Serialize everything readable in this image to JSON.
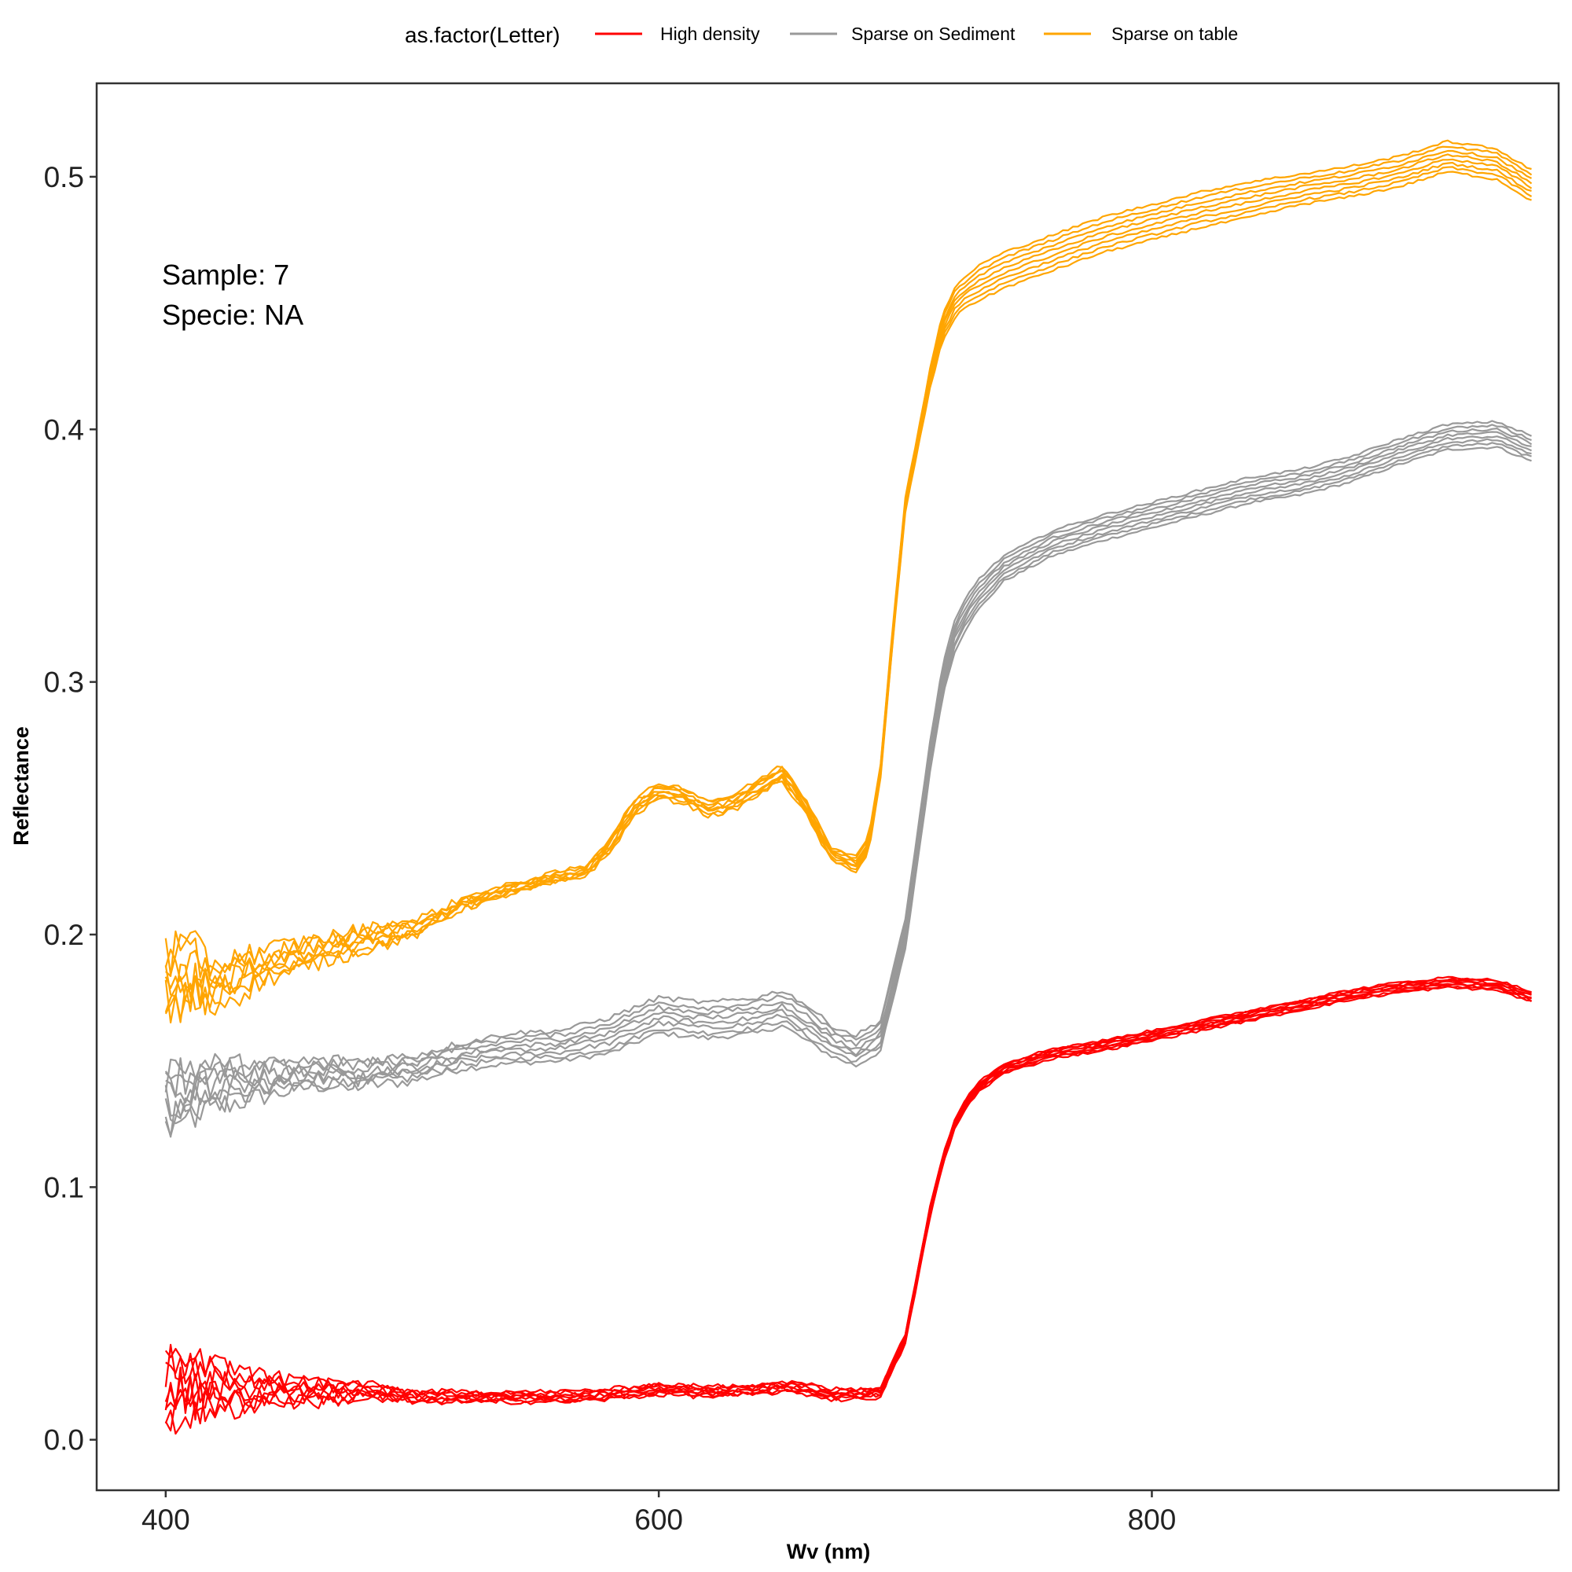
{
  "chart_data": {
    "type": "line",
    "xlabel": "Wv (nm)",
    "ylabel": "Reflectance",
    "xlim": [
      372,
      965
    ],
    "ylim": [
      -0.02,
      0.537
    ],
    "x_ticks": [
      400,
      600,
      800
    ],
    "x_tick_labels": [
      "400",
      "600",
      "800"
    ],
    "y_ticks": [
      0.0,
      0.1,
      0.2,
      0.3,
      0.4,
      0.5
    ],
    "y_tick_labels": [
      "0.0",
      "0.1",
      "0.2",
      "0.3",
      "0.4",
      "0.5"
    ],
    "grid": false,
    "legend": {
      "title": "as.factor(Letter)",
      "position": "top"
    },
    "annotation": {
      "lines": [
        "Sample: 7",
        "Specie: NA"
      ],
      "position": "top-left"
    },
    "series": [
      {
        "name": "High density",
        "color": "#ff0000",
        "replicates": 8,
        "x": [
          400,
          410,
          420,
          440,
          460,
          480,
          500,
          520,
          540,
          560,
          580,
          600,
          620,
          640,
          650,
          660,
          670,
          680,
          690,
          700,
          705,
          710,
          715,
          720,
          725,
          730,
          740,
          760,
          780,
          800,
          820,
          840,
          860,
          880,
          900,
          920,
          940,
          955
        ],
        "values": [
          0.02,
          0.022,
          0.02,
          0.02,
          0.019,
          0.019,
          0.017,
          0.017,
          0.017,
          0.017,
          0.018,
          0.02,
          0.019,
          0.02,
          0.021,
          0.02,
          0.018,
          0.018,
          0.019,
          0.04,
          0.065,
          0.09,
          0.11,
          0.125,
          0.134,
          0.14,
          0.147,
          0.153,
          0.156,
          0.16,
          0.164,
          0.168,
          0.172,
          0.176,
          0.179,
          0.181,
          0.18,
          0.175
        ],
        "spread": [
          0.012,
          0.01,
          0.008,
          0.005,
          0.004,
          0.003,
          0.002,
          0.002,
          0.002,
          0.002,
          0.002,
          0.002,
          0.002,
          0.002,
          0.002,
          0.002,
          0.002,
          0.002,
          0.002,
          0.002,
          0.002,
          0.002,
          0.002,
          0.002,
          0.002,
          0.002,
          0.002,
          0.002,
          0.002,
          0.002,
          0.002,
          0.002,
          0.002,
          0.002,
          0.002,
          0.002,
          0.002,
          0.002
        ],
        "noise": [
          0.012,
          0.01,
          0.007,
          0.004,
          0.003,
          0.002,
          0.0015,
          0.001,
          0.001,
          0.001,
          0.001,
          0.001,
          0.001,
          0.001,
          0.001,
          0.001,
          0.001,
          0.001,
          0.001,
          0.0005,
          0.0005,
          0.0005,
          0.0005,
          0.0005,
          0.0005,
          0.0005,
          0.0005,
          0.0005,
          0.0005,
          0.0005,
          0.0005,
          0.0005,
          0.0005,
          0.0005,
          0.0005,
          0.0005,
          0.0005,
          0.0005
        ]
      },
      {
        "name": "Sparse on Sediment",
        "color": "#999999",
        "replicates": 8,
        "x": [
          400,
          410,
          420,
          440,
          460,
          480,
          500,
          520,
          540,
          560,
          580,
          600,
          620,
          640,
          650,
          660,
          670,
          680,
          690,
          700,
          705,
          710,
          715,
          720,
          725,
          730,
          740,
          760,
          780,
          800,
          820,
          840,
          860,
          880,
          900,
          920,
          940,
          955
        ],
        "values": [
          0.135,
          0.138,
          0.14,
          0.142,
          0.145,
          0.145,
          0.147,
          0.152,
          0.155,
          0.156,
          0.16,
          0.168,
          0.166,
          0.168,
          0.171,
          0.165,
          0.158,
          0.154,
          0.16,
          0.2,
          0.235,
          0.27,
          0.3,
          0.318,
          0.328,
          0.335,
          0.345,
          0.355,
          0.361,
          0.366,
          0.371,
          0.376,
          0.379,
          0.384,
          0.391,
          0.397,
          0.398,
          0.392
        ],
        "spread": [
          0.012,
          0.01,
          0.008,
          0.006,
          0.005,
          0.005,
          0.005,
          0.005,
          0.006,
          0.006,
          0.007,
          0.007,
          0.007,
          0.007,
          0.007,
          0.007,
          0.006,
          0.006,
          0.006,
          0.006,
          0.006,
          0.006,
          0.006,
          0.006,
          0.006,
          0.006,
          0.005,
          0.005,
          0.005,
          0.005,
          0.005,
          0.005,
          0.005,
          0.005,
          0.005,
          0.005,
          0.005,
          0.005
        ],
        "noise": [
          0.01,
          0.008,
          0.006,
          0.004,
          0.003,
          0.003,
          0.002,
          0.0015,
          0.001,
          0.001,
          0.001,
          0.001,
          0.001,
          0.001,
          0.001,
          0.001,
          0.001,
          0.001,
          0.001,
          0.0005,
          0.0005,
          0.0005,
          0.0005,
          0.0005,
          0.0005,
          0.0005,
          0.0005,
          0.0005,
          0.0005,
          0.0005,
          0.0005,
          0.0005,
          0.0005,
          0.0005,
          0.0005,
          0.0005,
          0.0005,
          0.0005
        ]
      },
      {
        "name": "Sparse on table",
        "color": "#ffa500",
        "replicates": 8,
        "x": [
          400,
          410,
          420,
          440,
          460,
          480,
          500,
          520,
          540,
          560,
          570,
          580,
          590,
          600,
          610,
          620,
          630,
          640,
          650,
          660,
          670,
          680,
          685,
          690,
          695,
          700,
          705,
          710,
          715,
          720,
          725,
          730,
          740,
          760,
          780,
          800,
          820,
          840,
          860,
          880,
          900,
          920,
          940,
          955
        ],
        "values": [
          0.18,
          0.183,
          0.18,
          0.188,
          0.193,
          0.198,
          0.202,
          0.212,
          0.218,
          0.223,
          0.225,
          0.235,
          0.25,
          0.257,
          0.255,
          0.25,
          0.252,
          0.258,
          0.264,
          0.25,
          0.232,
          0.228,
          0.235,
          0.265,
          0.32,
          0.37,
          0.395,
          0.42,
          0.44,
          0.45,
          0.455,
          0.458,
          0.463,
          0.47,
          0.477,
          0.482,
          0.487,
          0.491,
          0.495,
          0.498,
          0.502,
          0.508,
          0.505,
          0.496
        ],
        "spread": [
          0.012,
          0.01,
          0.008,
          0.006,
          0.005,
          0.004,
          0.003,
          0.002,
          0.002,
          0.002,
          0.002,
          0.003,
          0.003,
          0.003,
          0.003,
          0.003,
          0.003,
          0.003,
          0.003,
          0.003,
          0.003,
          0.003,
          0.003,
          0.003,
          0.003,
          0.003,
          0.003,
          0.004,
          0.005,
          0.006,
          0.006,
          0.007,
          0.007,
          0.007,
          0.007,
          0.007,
          0.007,
          0.007,
          0.006,
          0.006,
          0.006,
          0.006,
          0.006,
          0.006
        ],
        "noise": [
          0.012,
          0.01,
          0.007,
          0.004,
          0.003,
          0.003,
          0.002,
          0.0015,
          0.001,
          0.001,
          0.001,
          0.001,
          0.001,
          0.001,
          0.001,
          0.001,
          0.001,
          0.001,
          0.001,
          0.001,
          0.001,
          0.0005,
          0.0005,
          0.0005,
          0.0005,
          0.0005,
          0.0005,
          0.0005,
          0.0005,
          0.0005,
          0.0005,
          0.0005,
          0.0005,
          0.0005,
          0.0005,
          0.0005,
          0.0005,
          0.0005,
          0.0005,
          0.0005,
          0.0005,
          0.0005,
          0.0005,
          0.0005
        ]
      }
    ]
  }
}
